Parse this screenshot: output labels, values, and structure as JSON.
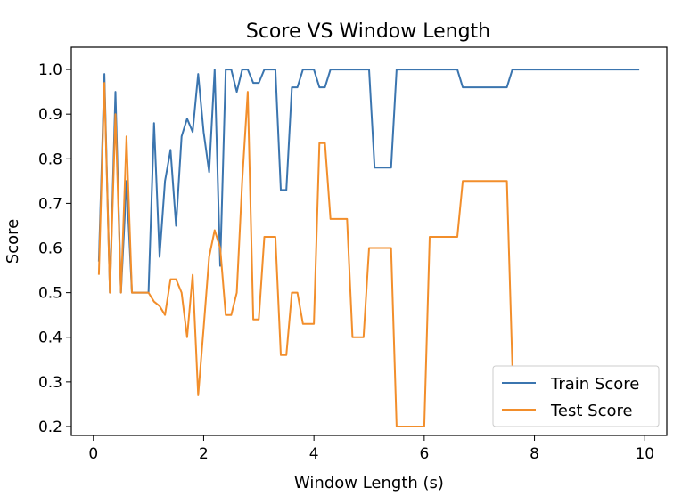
{
  "chart_data": {
    "type": "line",
    "title": "Score VS Window Length",
    "xlabel": "Window Length (s)",
    "ylabel": "Score",
    "xlim": [
      -0.4,
      10.4
    ],
    "ylim": [
      0.18,
      1.05
    ],
    "xticks": [
      0,
      2,
      4,
      6,
      8,
      10
    ],
    "yticks": [
      0.2,
      0.3,
      0.4,
      0.5,
      0.6,
      0.7,
      0.8,
      0.9,
      1.0
    ],
    "xtick_labels": [
      "0",
      "2",
      "4",
      "6",
      "8",
      "10"
    ],
    "ytick_labels": [
      "0.2",
      "0.3",
      "0.4",
      "0.5",
      "0.6",
      "0.7",
      "0.8",
      "0.9",
      "1.0"
    ],
    "grid": false,
    "legend_position": "lower-right",
    "series": [
      {
        "name": "Train Score",
        "color": "#3b75af",
        "x": [
          0.1,
          0.2,
          0.3,
          0.4,
          0.5,
          0.6,
          0.7,
          0.8,
          0.9,
          1.0,
          1.1,
          1.2,
          1.3,
          1.4,
          1.5,
          1.6,
          1.7,
          1.8,
          1.9,
          2.0,
          2.1,
          2.2,
          2.3,
          2.4,
          2.5,
          2.6,
          2.7,
          2.8,
          2.9,
          3.0,
          3.1,
          3.2,
          3.3,
          3.4,
          3.5,
          3.6,
          3.7,
          3.8,
          3.9,
          4.0,
          4.1,
          4.2,
          4.3,
          4.4,
          4.5,
          4.6,
          4.7,
          4.8,
          4.9,
          5.0,
          5.1,
          5.2,
          5.3,
          5.4,
          5.5,
          5.6,
          5.7,
          5.8,
          5.9,
          6.0,
          6.1,
          6.2,
          6.3,
          6.4,
          6.5,
          6.6,
          6.7,
          6.8,
          6.9,
          7.0,
          7.1,
          7.2,
          7.3,
          7.4,
          7.5,
          7.6,
          7.7,
          7.8,
          7.9,
          8.0,
          8.1,
          8.2,
          8.3,
          8.4,
          8.5,
          8.6,
          8.7,
          8.8,
          8.9,
          9.0,
          9.1,
          9.2,
          9.3,
          9.4,
          9.5,
          9.6,
          9.7,
          9.8,
          9.9
        ],
        "values": [
          0.57,
          0.99,
          0.5,
          0.95,
          0.5,
          0.75,
          0.5,
          0.5,
          0.5,
          0.5,
          0.88,
          0.58,
          0.75,
          0.82,
          0.65,
          0.85,
          0.89,
          0.86,
          0.99,
          0.86,
          0.77,
          1.0,
          0.56,
          1.0,
          1.0,
          0.95,
          1.0,
          1.0,
          0.97,
          0.97,
          1.0,
          1.0,
          1.0,
          0.73,
          0.73,
          0.96,
          0.96,
          1.0,
          1.0,
          1.0,
          0.96,
          0.96,
          1.0,
          1.0,
          1.0,
          1.0,
          1.0,
          1.0,
          1.0,
          1.0,
          0.78,
          0.78,
          0.78,
          0.78,
          1.0,
          1.0,
          1.0,
          1.0,
          1.0,
          1.0,
          1.0,
          1.0,
          1.0,
          1.0,
          1.0,
          1.0,
          0.96,
          0.96,
          0.96,
          0.96,
          0.96,
          0.96,
          0.96,
          0.96,
          0.96,
          1.0,
          1.0,
          1.0,
          1.0,
          1.0,
          1.0,
          1.0,
          1.0,
          1.0,
          1.0,
          1.0,
          1.0,
          1.0,
          1.0,
          1.0,
          1.0,
          1.0,
          1.0,
          1.0,
          1.0,
          1.0,
          1.0,
          1.0,
          1.0
        ]
      },
      {
        "name": "Test Score",
        "color": "#f28e2b",
        "x": [
          0.1,
          0.2,
          0.3,
          0.4,
          0.5,
          0.6,
          0.7,
          0.8,
          0.9,
          1.0,
          1.1,
          1.2,
          1.3,
          1.4,
          1.5,
          1.6,
          1.7,
          1.8,
          1.9,
          2.0,
          2.1,
          2.2,
          2.3,
          2.4,
          2.5,
          2.6,
          2.7,
          2.8,
          2.9,
          3.0,
          3.1,
          3.2,
          3.3,
          3.4,
          3.5,
          3.6,
          3.7,
          3.8,
          3.9,
          4.0,
          4.1,
          4.2,
          4.3,
          4.4,
          4.5,
          4.6,
          4.7,
          4.8,
          4.9,
          5.0,
          5.1,
          5.2,
          5.3,
          5.4,
          5.5,
          5.6,
          5.7,
          5.8,
          5.9,
          6.0,
          6.1,
          6.2,
          6.3,
          6.4,
          6.5,
          6.6,
          6.7,
          6.8,
          6.9,
          7.0,
          7.1,
          7.2,
          7.3,
          7.4,
          7.5,
          7.6,
          7.7,
          7.8,
          7.9,
          8.0,
          8.1,
          8.2,
          8.3,
          8.4,
          8.5,
          8.6,
          8.7,
          8.8,
          8.9,
          9.0,
          9.1,
          9.2,
          9.3,
          9.4,
          9.5,
          9.6,
          9.7,
          9.8,
          9.9
        ],
        "values": [
          0.54,
          0.97,
          0.5,
          0.9,
          0.5,
          0.85,
          0.5,
          0.5,
          0.5,
          0.5,
          0.48,
          0.47,
          0.45,
          0.53,
          0.53,
          0.5,
          0.4,
          0.54,
          0.27,
          0.42,
          0.58,
          0.64,
          0.6,
          0.45,
          0.45,
          0.5,
          0.75,
          0.95,
          0.44,
          0.44,
          0.625,
          0.625,
          0.625,
          0.36,
          0.36,
          0.5,
          0.5,
          0.43,
          0.43,
          0.43,
          0.835,
          0.835,
          0.665,
          0.665,
          0.665,
          0.665,
          0.4,
          0.4,
          0.4,
          0.6,
          0.6,
          0.6,
          0.6,
          0.6,
          0.2,
          0.2,
          0.2,
          0.2,
          0.2,
          0.2,
          0.625,
          0.625,
          0.625,
          0.625,
          0.625,
          0.625,
          0.75,
          0.75,
          0.75,
          0.75,
          0.75,
          0.75,
          0.75,
          0.75,
          0.75,
          0.333,
          0.333,
          0.333,
          0.333,
          0.333,
          0.333,
          0.333,
          0.333,
          0.333,
          0.333,
          0.333,
          0.333,
          0.333,
          0.333,
          0.333,
          0.333,
          0.333,
          0.333,
          0.333,
          0.333,
          0.333,
          0.333,
          0.333,
          0.333
        ]
      }
    ]
  }
}
